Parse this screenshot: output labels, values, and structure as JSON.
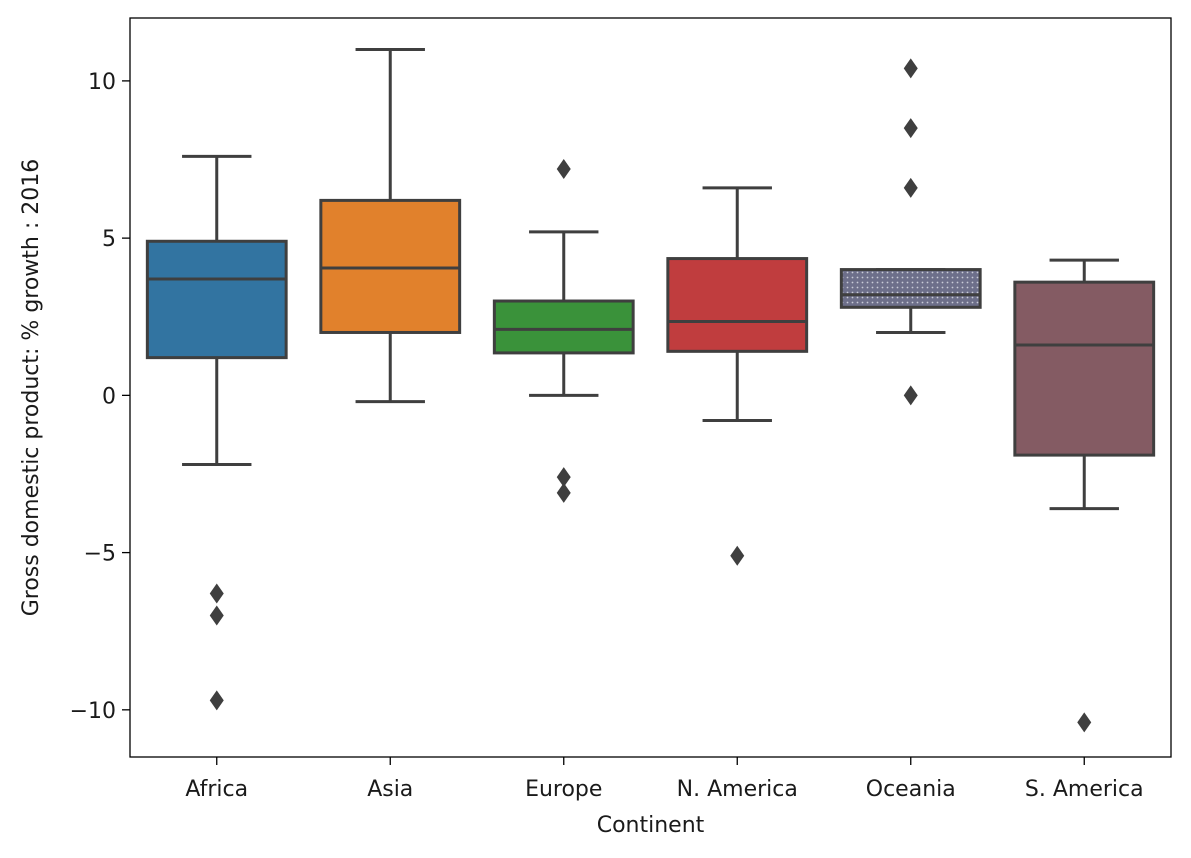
{
  "chart_data": {
    "type": "box",
    "title": "",
    "xlabel": "Continent",
    "ylabel": "Gross domestic product: % growth : 2016",
    "ylim": [
      -11.5,
      12.0
    ],
    "yticks": [
      -10,
      -5,
      0,
      5,
      10
    ],
    "ytick_labels": [
      "−10",
      "−5",
      "0",
      "5",
      "10"
    ],
    "grid": false,
    "legend": "none",
    "categories": [
      "Africa",
      "Asia",
      "Europe",
      "N. America",
      "Oceania",
      "S. America"
    ],
    "boxes": [
      {
        "category": "Africa",
        "color": "#3274a1",
        "hatch": false,
        "whisker_low": -2.2,
        "q1": 1.2,
        "median": 3.7,
        "q3": 4.9,
        "whisker_high": 7.6,
        "outliers": [
          -6.3,
          -7.0,
          -9.7
        ]
      },
      {
        "category": "Asia",
        "color": "#e1812c",
        "hatch": false,
        "whisker_low": -0.2,
        "q1": 2.0,
        "median": 4.05,
        "q3": 6.2,
        "whisker_high": 11.0,
        "outliers": []
      },
      {
        "category": "Europe",
        "color": "#3a923a",
        "hatch": false,
        "whisker_low": 0.0,
        "q1": 1.35,
        "median": 2.1,
        "q3": 3.0,
        "whisker_high": 5.2,
        "outliers": [
          7.2,
          -2.6,
          -3.1
        ]
      },
      {
        "category": "N. America",
        "color": "#c03d3e",
        "hatch": false,
        "whisker_low": -0.8,
        "q1": 1.4,
        "median": 2.35,
        "q3": 4.35,
        "whisker_high": 6.6,
        "outliers": [
          -5.1
        ]
      },
      {
        "category": "Oceania",
        "color": "#6d6f8a",
        "hatch": true,
        "whisker_low": 2.0,
        "q1": 2.8,
        "median": 3.2,
        "q3": 4.0,
        "whisker_high": 4.0,
        "outliers": [
          10.4,
          8.5,
          6.6,
          0.0
        ]
      },
      {
        "category": "S. America",
        "color": "#845b63",
        "hatch": false,
        "whisker_low": -3.6,
        "q1": -1.9,
        "median": 1.6,
        "q3": 3.6,
        "whisker_high": 4.3,
        "outliers": [
          -10.4
        ]
      }
    ],
    "line_color": "#3f3f3f"
  }
}
